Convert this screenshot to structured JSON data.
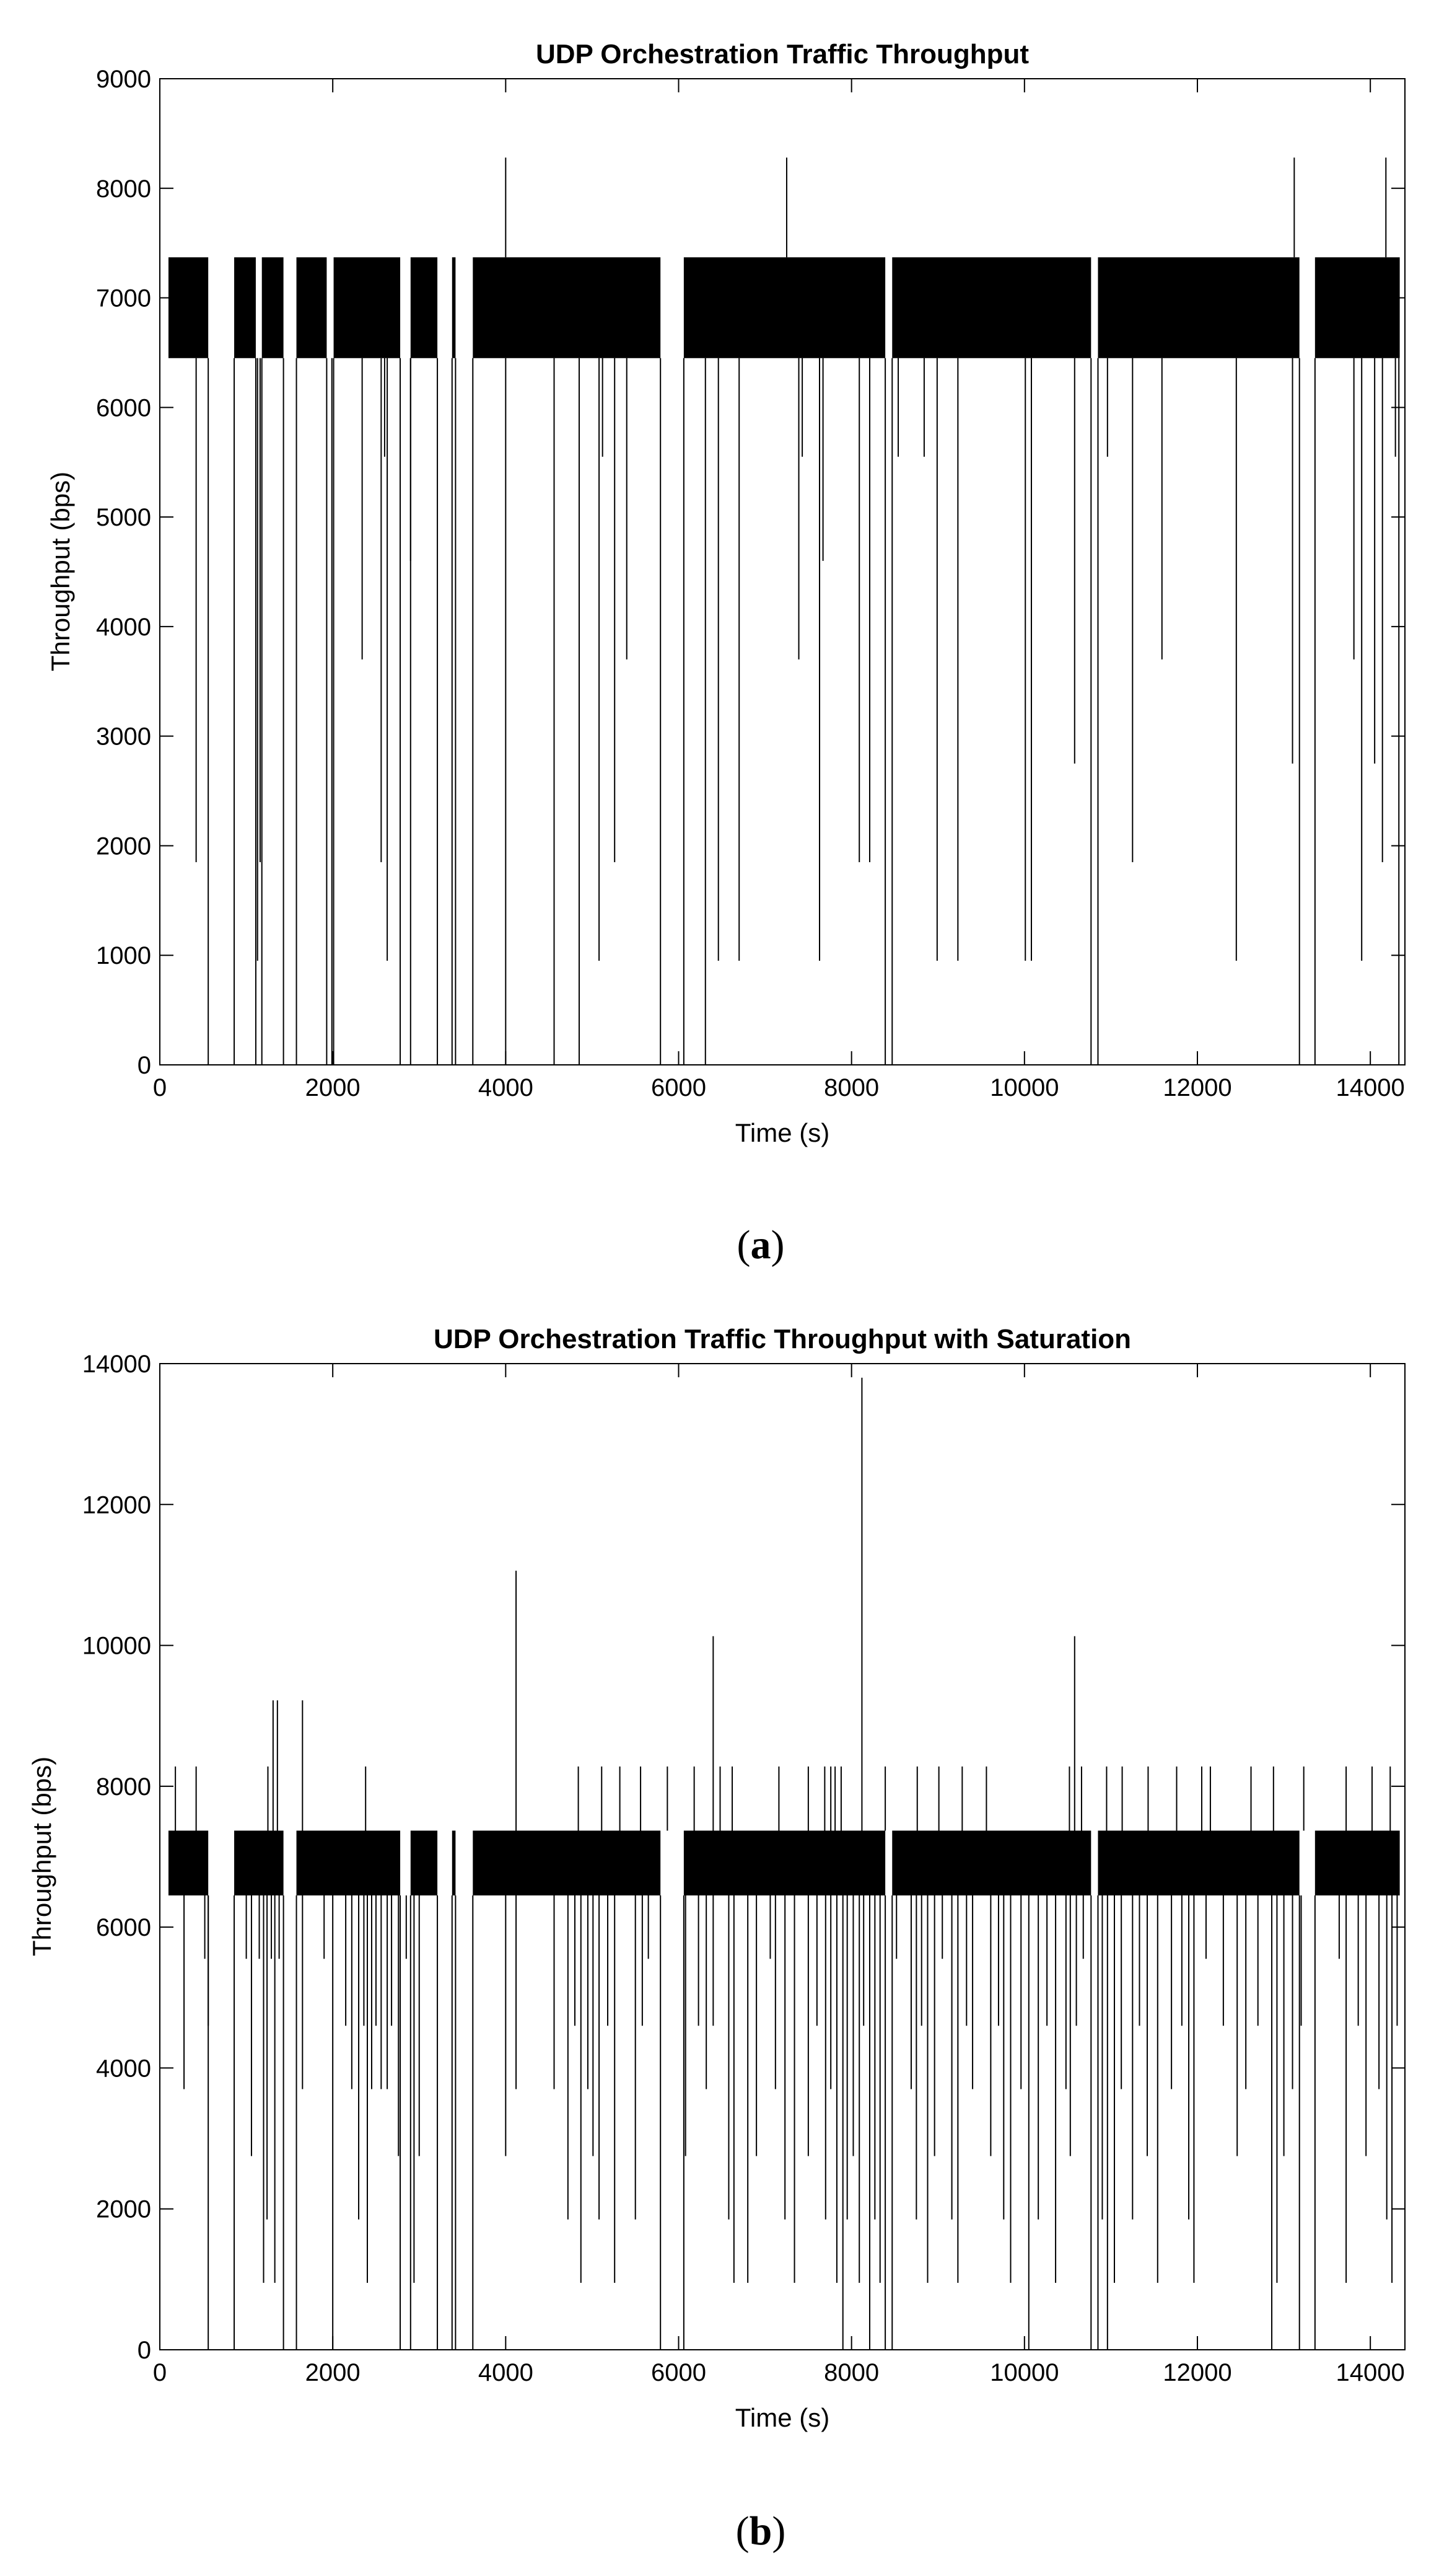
{
  "chart_data": [
    {
      "type": "line",
      "panel_label": "(a)",
      "panel_letter": "a",
      "title": "UDP Orchestration Traffic Throughput",
      "xlabel": "Time (s)",
      "ylabel": "Throughput (bps)",
      "xlim": [
        0,
        14400
      ],
      "ylim": [
        0,
        9000
      ],
      "xticks": [
        0,
        2000,
        4000,
        6000,
        8000,
        10000,
        12000,
        14000
      ],
      "yticks": [
        0,
        1000,
        2000,
        3000,
        4000,
        5000,
        6000,
        7000,
        8000,
        9000
      ],
      "grid": false,
      "legend": "none",
      "line_color": "#000000",
      "series": [
        {
          "band": [
            6450,
            7370
          ],
          "active_intervals": [
            [
              100,
              560
            ],
            [
              860,
              1110
            ],
            [
              1180,
              1430
            ],
            [
              1580,
              1930
            ],
            [
              2010,
              2780
            ],
            [
              2900,
              3210
            ],
            [
              3380,
              3420
            ],
            [
              3620,
              5790
            ],
            [
              6060,
              8390
            ],
            [
              8470,
              10770
            ],
            [
              10850,
              13180
            ],
            [
              13360,
              14340
            ]
          ],
          "gaps_to_zero": [
            [
              560,
              860
            ],
            [
              1110,
              1180
            ],
            [
              1430,
              1580
            ],
            [
              1930,
              2010
            ],
            [
              2780,
              2900
            ],
            [
              3210,
              3380
            ],
            [
              3420,
              3620
            ],
            [
              5790,
              6060
            ],
            [
              8390,
              8470
            ],
            [
              10770,
              10850
            ],
            [
              13180,
              13360
            ]
          ],
          "dips": [
            [
              420,
              1850
            ],
            [
              1130,
              950
            ],
            [
              1160,
              1850
            ],
            [
              1990,
              0
            ],
            [
              2340,
              3700
            ],
            [
              2560,
              1850
            ],
            [
              2600,
              5550
            ],
            [
              2630,
              950
            ],
            [
              2900,
              4600
            ],
            [
              4000,
              0
            ],
            [
              4560,
              0
            ],
            [
              4850,
              0
            ],
            [
              5080,
              950
            ],
            [
              5120,
              5550
            ],
            [
              5260,
              1850
            ],
            [
              5400,
              3700
            ],
            [
              6310,
              0
            ],
            [
              6460,
              950
            ],
            [
              6700,
              950
            ],
            [
              7390,
              3700
            ],
            [
              7430,
              5550
            ],
            [
              7630,
              950
            ],
            [
              7670,
              4600
            ],
            [
              8090,
              1850
            ],
            [
              8210,
              1850
            ],
            [
              8540,
              5550
            ],
            [
              8840,
              5550
            ],
            [
              8990,
              950
            ],
            [
              9230,
              950
            ],
            [
              10010,
              950
            ],
            [
              10080,
              950
            ],
            [
              10580,
              2750
            ],
            [
              10960,
              5550
            ],
            [
              11250,
              1850
            ],
            [
              11590,
              3700
            ],
            [
              12450,
              950
            ],
            [
              13100,
              2750
            ],
            [
              13810,
              3700
            ],
            [
              13900,
              950
            ],
            [
              14050,
              2750
            ],
            [
              14140,
              1850
            ],
            [
              14290,
              5550
            ],
            [
              14330,
              0
            ]
          ],
          "spikes": [
            [
              4000,
              8280
            ],
            [
              7250,
              8280
            ],
            [
              13120,
              8280
            ],
            [
              14180,
              8280
            ]
          ]
        }
      ]
    },
    {
      "type": "line",
      "panel_label": "(b)",
      "panel_letter": "b",
      "title": "UDP Orchestration Traffic Throughput with Saturation",
      "xlabel": "Time (s)",
      "ylabel": "Throughput (bps)",
      "xlim": [
        0,
        14400
      ],
      "ylim": [
        0,
        14000
      ],
      "xticks": [
        0,
        2000,
        4000,
        6000,
        8000,
        10000,
        12000,
        14000
      ],
      "yticks": [
        0,
        2000,
        4000,
        6000,
        8000,
        10000,
        12000,
        14000
      ],
      "grid": false,
      "legend": "none",
      "line_color": "#000000",
      "series": [
        {
          "band": [
            6450,
            7370
          ],
          "active_intervals": [
            [
              100,
              560
            ],
            [
              860,
              1430
            ],
            [
              1580,
              2780
            ],
            [
              2900,
              3210
            ],
            [
              3380,
              3420
            ],
            [
              3620,
              5790
            ],
            [
              6060,
              8390
            ],
            [
              8470,
              10770
            ],
            [
              10850,
              13180
            ],
            [
              13360,
              14340
            ]
          ],
          "gaps_to_zero": [
            [
              560,
              860
            ],
            [
              1430,
              1580
            ],
            [
              2780,
              2900
            ],
            [
              3210,
              3380
            ],
            [
              3420,
              3620
            ],
            [
              5790,
              6060
            ],
            [
              8390,
              8470
            ],
            [
              10770,
              10850
            ],
            [
              13180,
              13360
            ]
          ],
          "dips": [
            [
              280,
              3700
            ],
            [
              520,
              5550
            ],
            [
              560,
              4600
            ],
            [
              1000,
              5550
            ],
            [
              1060,
              2750
            ],
            [
              1150,
              5550
            ],
            [
              1200,
              950
            ],
            [
              1240,
              1850
            ],
            [
              1290,
              5550
            ],
            [
              1330,
              950
            ],
            [
              1380,
              5550
            ],
            [
              1650,
              3700
            ],
            [
              1900,
              5550
            ],
            [
              2000,
              0
            ],
            [
              2150,
              4600
            ],
            [
              2220,
              3700
            ],
            [
              2300,
              1850
            ],
            [
              2360,
              4600
            ],
            [
              2400,
              950
            ],
            [
              2450,
              3700
            ],
            [
              2500,
              4600
            ],
            [
              2560,
              3700
            ],
            [
              2630,
              3700
            ],
            [
              2680,
              4600
            ],
            [
              2760,
              2750
            ],
            [
              2850,
              5550
            ],
            [
              2940,
              950
            ],
            [
              3000,
              2750
            ],
            [
              4000,
              2750
            ],
            [
              4120,
              3700
            ],
            [
              4560,
              3700
            ],
            [
              4720,
              1850
            ],
            [
              4800,
              4600
            ],
            [
              4870,
              950
            ],
            [
              4950,
              3700
            ],
            [
              5010,
              2750
            ],
            [
              5080,
              1850
            ],
            [
              5180,
              4600
            ],
            [
              5260,
              950
            ],
            [
              5500,
              1850
            ],
            [
              5580,
              4600
            ],
            [
              5650,
              5550
            ],
            [
              6080,
              2750
            ],
            [
              6230,
              4600
            ],
            [
              6320,
              3700
            ],
            [
              6400,
              4600
            ],
            [
              6580,
              1850
            ],
            [
              6640,
              950
            ],
            [
              6800,
              950
            ],
            [
              6900,
              2750
            ],
            [
              7060,
              5550
            ],
            [
              7120,
              3700
            ],
            [
              7230,
              1850
            ],
            [
              7340,
              950
            ],
            [
              7500,
              2750
            ],
            [
              7600,
              4600
            ],
            [
              7700,
              1850
            ],
            [
              7760,
              3700
            ],
            [
              7830,
              950
            ],
            [
              7900,
              0
            ],
            [
              7950,
              1850
            ],
            [
              8020,
              2750
            ],
            [
              8090,
              950
            ],
            [
              8140,
              4600
            ],
            [
              8210,
              0
            ],
            [
              8270,
              1850
            ],
            [
              8330,
              950
            ],
            [
              8520,
              5550
            ],
            [
              8690,
              3700
            ],
            [
              8750,
              1850
            ],
            [
              8810,
              4600
            ],
            [
              8880,
              950
            ],
            [
              8960,
              2750
            ],
            [
              9050,
              5550
            ],
            [
              9160,
              1850
            ],
            [
              9230,
              950
            ],
            [
              9330,
              4600
            ],
            [
              9400,
              3700
            ],
            [
              9610,
              2750
            ],
            [
              9700,
              4600
            ],
            [
              9760,
              1850
            ],
            [
              9840,
              950
            ],
            [
              9960,
              3700
            ],
            [
              10050,
              0
            ],
            [
              10160,
              1850
            ],
            [
              10260,
              4600
            ],
            [
              10360,
              950
            ],
            [
              10480,
              3700
            ],
            [
              10530,
              2750
            ],
            [
              10600,
              4600
            ],
            [
              10680,
              5550
            ],
            [
              10900,
              1850
            ],
            [
              10960,
              0
            ],
            [
              11040,
              950
            ],
            [
              11120,
              3700
            ],
            [
              11250,
              1850
            ],
            [
              11330,
              4600
            ],
            [
              11420,
              2750
            ],
            [
              11540,
              950
            ],
            [
              11700,
              3700
            ],
            [
              11820,
              4600
            ],
            [
              11900,
              1850
            ],
            [
              11960,
              950
            ],
            [
              12100,
              5550
            ],
            [
              12300,
              4600
            ],
            [
              12460,
              2750
            ],
            [
              12560,
              3700
            ],
            [
              12700,
              4600
            ],
            [
              12860,
              0
            ],
            [
              12920,
              950
            ],
            [
              13000,
              2750
            ],
            [
              13100,
              3700
            ],
            [
              13200,
              4600
            ],
            [
              13640,
              5550
            ],
            [
              13720,
              950
            ],
            [
              13860,
              4600
            ],
            [
              13950,
              2750
            ],
            [
              14100,
              3700
            ],
            [
              14190,
              1850
            ],
            [
              14250,
              950
            ],
            [
              14310,
              4600
            ]
          ],
          "spikes": [
            [
              180,
              8280
            ],
            [
              420,
              8280
            ],
            [
              1250,
              8280
            ],
            [
              1310,
              9220
            ],
            [
              1360,
              9220
            ],
            [
              1650,
              9220
            ],
            [
              2380,
              8280
            ],
            [
              4120,
              11060
            ],
            [
              4840,
              8280
            ],
            [
              5110,
              8280
            ],
            [
              5320,
              8280
            ],
            [
              5560,
              8280
            ],
            [
              5870,
              8280
            ],
            [
              6180,
              8280
            ],
            [
              6400,
              10130
            ],
            [
              6480,
              8280
            ],
            [
              6620,
              8280
            ],
            [
              7160,
              8280
            ],
            [
              7500,
              8280
            ],
            [
              7690,
              8280
            ],
            [
              7760,
              8280
            ],
            [
              7810,
              8280
            ],
            [
              7880,
              8280
            ],
            [
              8120,
              13800
            ],
            [
              8390,
              8280
            ],
            [
              8760,
              8280
            ],
            [
              9010,
              8280
            ],
            [
              9280,
              8280
            ],
            [
              9560,
              8280
            ],
            [
              10520,
              8280
            ],
            [
              10580,
              10130
            ],
            [
              10660,
              8280
            ],
            [
              10950,
              8280
            ],
            [
              11130,
              8280
            ],
            [
              11430,
              8280
            ],
            [
              11760,
              8280
            ],
            [
              12050,
              8280
            ],
            [
              12150,
              8280
            ],
            [
              12620,
              8280
            ],
            [
              12880,
              8280
            ],
            [
              13230,
              8280
            ],
            [
              13720,
              8280
            ],
            [
              14020,
              8280
            ],
            [
              14230,
              8280
            ]
          ]
        }
      ]
    }
  ]
}
